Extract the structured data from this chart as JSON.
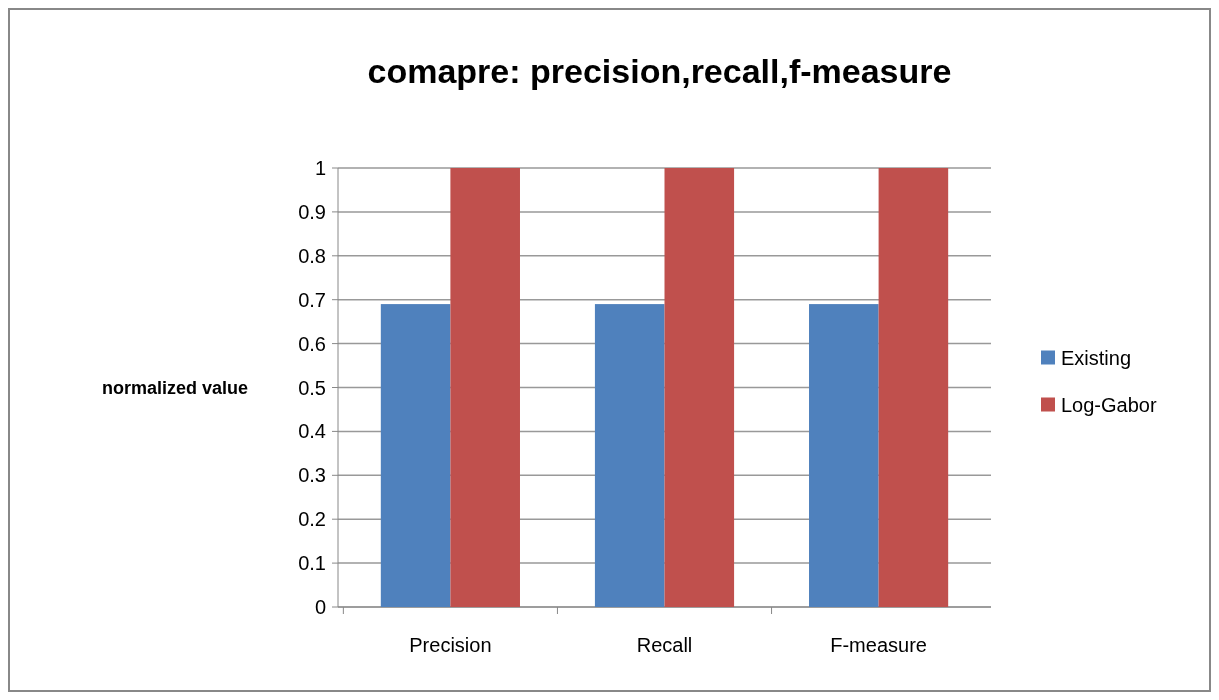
{
  "chart_data": {
    "type": "bar",
    "title": "comapre: precision,recall,f-measure",
    "ylabel": "normalized value",
    "categories": [
      "Precision",
      "Recall",
      "F-measure"
    ],
    "series": [
      {
        "name": "Existing",
        "color": "#4f81bd",
        "values": [
          0.69,
          0.69,
          0.69
        ]
      },
      {
        "name": "Log-Gabor",
        "color": "#c0504d",
        "values": [
          1,
          1,
          1
        ]
      }
    ],
    "ylim": [
      0,
      1
    ],
    "yticks": [
      0,
      0.1,
      0.2,
      0.3,
      0.4,
      0.5,
      0.6,
      0.7,
      0.8,
      0.9,
      1
    ],
    "grid": "y",
    "legend": "right"
  }
}
